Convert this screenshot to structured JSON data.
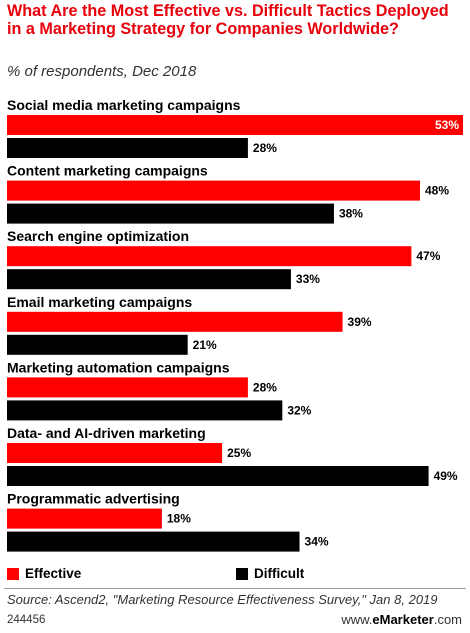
{
  "title": "What Are the Most Effective vs. Difficult Tactics Deployed in a Marketing Strategy for Companies Worldwide?",
  "subtitle": "% of respondents, Dec 2018",
  "chart_data": {
    "type": "bar",
    "orientation": "horizontal",
    "categories": [
      "Social media marketing campaigns",
      "Content marketing campaigns",
      "Search engine optimization",
      "Email marketing campaigns",
      "Marketing automation campaigns",
      "Data- and AI-driven marketing",
      "Programmatic advertising"
    ],
    "series": [
      {
        "name": "Effective",
        "color": "#ff0000",
        "values": [
          53,
          48,
          47,
          39,
          28,
          25,
          18
        ]
      },
      {
        "name": "Difficult",
        "color": "#000000",
        "values": [
          28,
          38,
          33,
          21,
          32,
          49,
          34
        ]
      }
    ],
    "value_suffix": "%",
    "xlim": [
      0,
      53
    ],
    "grid": false,
    "legend_position": "bottom"
  },
  "legend": {
    "effective": "Effective",
    "difficult": "Difficult"
  },
  "source": "Source: Ascend2, \"Marketing Resource Effectiveness Survey,\" Jan 8, 2019",
  "footer": {
    "chart_id": "244456",
    "brand_prefix": "www.",
    "brand_name": "eMarketer",
    "brand_suffix": ".com"
  }
}
